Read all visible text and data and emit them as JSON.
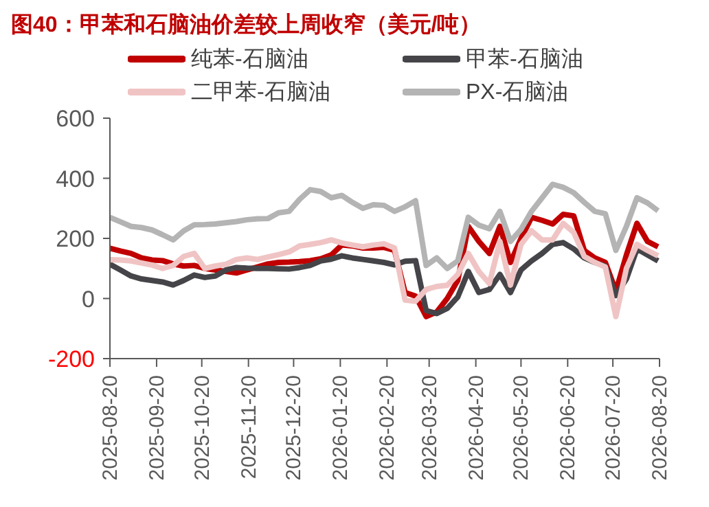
{
  "chart_data": {
    "type": "line",
    "title": "图40：甲苯和石脑油价差较上周收窄（美元/吨）",
    "x": [
      "2025-08-20",
      "2025-08-27",
      "2025-09-03",
      "2025-09-10",
      "2025-09-17",
      "2025-09-24",
      "2025-10-01",
      "2025-10-08",
      "2025-10-15",
      "2025-10-22",
      "2025-10-29",
      "2025-11-05",
      "2025-11-12",
      "2025-11-19",
      "2025-11-26",
      "2025-12-03",
      "2025-12-10",
      "2025-12-17",
      "2025-12-24",
      "2025-12-31",
      "2026-01-07",
      "2026-01-14",
      "2026-01-21",
      "2026-01-28",
      "2026-02-04",
      "2026-02-11",
      "2026-02-18",
      "2026-02-25",
      "2026-03-04",
      "2026-03-11",
      "2026-03-18",
      "2026-03-25",
      "2026-04-01",
      "2026-04-08",
      "2026-04-15",
      "2026-04-22",
      "2026-04-29",
      "2026-05-06",
      "2026-05-13",
      "2026-05-20",
      "2026-05-27",
      "2026-06-03",
      "2026-06-10",
      "2026-06-17",
      "2026-06-24",
      "2026-07-01",
      "2026-07-08",
      "2026-07-15",
      "2026-07-22",
      "2026-07-29",
      "2026-08-05",
      "2026-08-12",
      "2026-08-19"
    ],
    "series": [
      {
        "name": "纯苯-石脑油",
        "color": "#c00000",
        "values": [
          167,
          158,
          150,
          135,
          128,
          126,
          115,
          108,
          110,
          100,
          95,
          90,
          85,
          95,
          105,
          115,
          120,
          121,
          123,
          126,
          132,
          145,
          178,
          175,
          168,
          168,
          170,
          160,
          20,
          8,
          -60,
          -45,
          0,
          60,
          240,
          190,
          150,
          240,
          120,
          200,
          270,
          260,
          248,
          280,
          275,
          160,
          135,
          120,
          25,
          145,
          250,
          190,
          172
        ]
      },
      {
        "name": "甲苯-石脑油",
        "color": "#454549",
        "values": [
          114,
          95,
          75,
          65,
          60,
          55,
          45,
          60,
          78,
          70,
          75,
          95,
          103,
          101,
          100,
          100,
          99,
          98,
          103,
          110,
          125,
          131,
          142,
          135,
          130,
          125,
          120,
          112,
          124,
          126,
          -40,
          -50,
          -33,
          5,
          90,
          20,
          30,
          80,
          20,
          95,
          125,
          150,
          180,
          186,
          165,
          135,
          120,
          108,
          10,
          65,
          165,
          145,
          125
        ]
      },
      {
        "name": "二甲苯-石脑油",
        "color": "#f0c4c4",
        "values": [
          129,
          128,
          125,
          118,
          111,
          100,
          110,
          140,
          150,
          100,
          108,
          114,
          130,
          135,
          130,
          138,
          146,
          155,
          175,
          180,
          186,
          195,
          185,
          178,
          172,
          178,
          182,
          168,
          -5,
          -9,
          30,
          40,
          44,
          80,
          150,
          90,
          50,
          190,
          45,
          180,
          225,
          195,
          195,
          250,
          220,
          140,
          120,
          105,
          -60,
          100,
          180,
          160,
          142
        ]
      },
      {
        "name": "PX-石脑油",
        "color": "#b4b4b4",
        "values": [
          270,
          255,
          240,
          236,
          228,
          212,
          195,
          225,
          245,
          246,
          248,
          252,
          256,
          262,
          265,
          266,
          285,
          290,
          330,
          362,
          356,
          335,
          343,
          320,
          300,
          312,
          310,
          290,
          305,
          325,
          110,
          135,
          100,
          125,
          270,
          244,
          232,
          290,
          190,
          230,
          290,
          335,
          380,
          370,
          352,
          320,
          290,
          282,
          160,
          240,
          335,
          318,
          292
        ]
      }
    ],
    "xlim": [
      "2025-08-20",
      "2026-08-20"
    ],
    "xticks": [
      "2025-08-20",
      "2025-09-20",
      "2025-10-20",
      "2025-11-20",
      "2025-12-20",
      "2026-01-20",
      "2026-02-20",
      "2026-03-20",
      "2026-04-20",
      "2026-05-20",
      "2026-06-20",
      "2026-07-20",
      "2026-08-20"
    ],
    "ylim": [
      -200,
      600
    ],
    "yticks": [
      -200,
      0,
      200,
      400,
      600
    ],
    "legend": "top",
    "marker": "none",
    "line_style": "solid",
    "grid": false
  }
}
